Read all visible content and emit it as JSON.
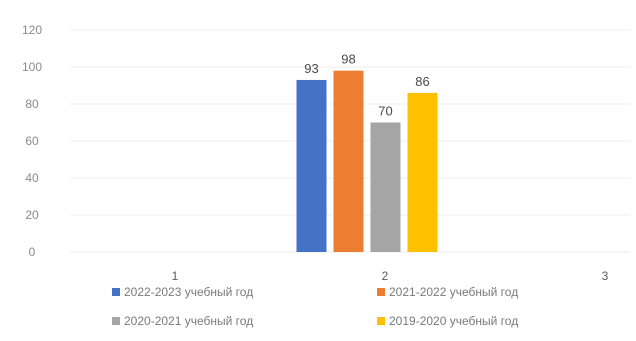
{
  "chart_data": {
    "type": "bar",
    "x": [
      "1",
      "2",
      "3"
    ],
    "ylim": [
      0,
      120
    ],
    "yticks": [
      "0",
      "20",
      "40",
      "60",
      "80",
      "100",
      "120"
    ],
    "grid": true,
    "legend_position": "bottom",
    "series": [
      {
        "name": "2022-2023 учебный год",
        "color": "#4472C4",
        "values": [
          null,
          93,
          null
        ]
      },
      {
        "name": "2021-2022 учебный год",
        "color": "#ED7D31",
        "values": [
          null,
          98,
          null
        ]
      },
      {
        "name": "2020-2021 учебный год",
        "color": "#A5A5A5",
        "values": [
          null,
          70,
          null
        ]
      },
      {
        "name": "2019-2020 учебный год",
        "color": "#FFC000",
        "values": [
          null,
          86,
          null
        ]
      }
    ],
    "data_labels": [
      "93",
      "98",
      "70",
      "86"
    ]
  }
}
